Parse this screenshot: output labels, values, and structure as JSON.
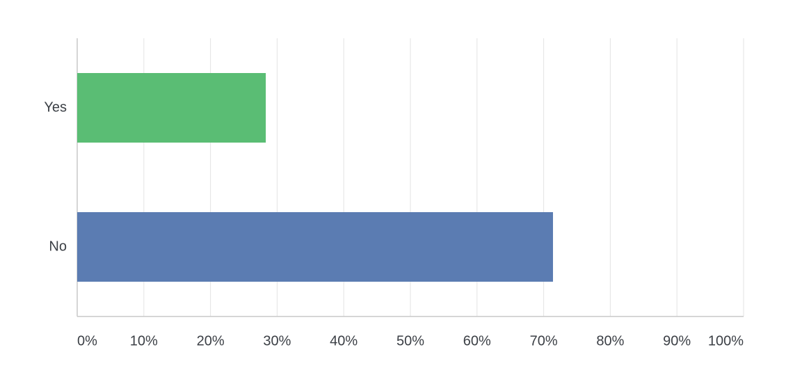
{
  "chart_data": {
    "type": "hbar",
    "categories": [
      "Yes",
      "No"
    ],
    "values": [
      28.3,
      71.4
    ],
    "colors": [
      "#5abd74",
      "#5b7cb2"
    ],
    "xlim": [
      0,
      100
    ],
    "xticks": [
      {
        "value": 0,
        "label": "0%"
      },
      {
        "value": 10,
        "label": "10%"
      },
      {
        "value": 20,
        "label": "20%"
      },
      {
        "value": 30,
        "label": "30%"
      },
      {
        "value": 40,
        "label": "40%"
      },
      {
        "value": 50,
        "label": "50%"
      },
      {
        "value": 60,
        "label": "60%"
      },
      {
        "value": 70,
        "label": "70%"
      },
      {
        "value": 80,
        "label": "80%"
      },
      {
        "value": 90,
        "label": "90%"
      },
      {
        "value": 100,
        "label": "100%"
      }
    ],
    "grid": true
  }
}
